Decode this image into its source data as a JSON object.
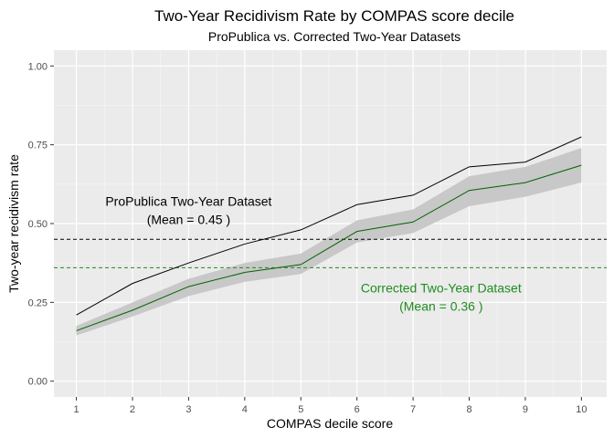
{
  "chart_data": {
    "type": "line",
    "title": "Two-Year Recidivism Rate by COMPAS score decile",
    "subtitle": "ProPublica vs. Corrected Two-Year Datasets",
    "xlabel": "COMPAS decile score",
    "ylabel": "Two-year recidivism rate",
    "x": [
      1,
      2,
      3,
      4,
      5,
      6,
      7,
      8,
      9,
      10
    ],
    "x_ticks": [
      "1",
      "2",
      "3",
      "4",
      "5",
      "6",
      "7",
      "8",
      "9",
      "10"
    ],
    "y_ticks": [
      "0.00",
      "0.25",
      "0.50",
      "0.75",
      "1.00"
    ],
    "y_tick_values": [
      0,
      0.25,
      0.5,
      0.75,
      1.0
    ],
    "xlim": [
      0.6,
      10.45
    ],
    "ylim": [
      -0.05,
      1.05
    ],
    "grid": true,
    "series": [
      {
        "values": [
          0.21,
          0.31,
          0.375,
          0.435,
          0.48,
          0.56,
          0.59,
          0.68,
          0.695,
          0.775
        ],
        "color": "#000000"
      },
      {
        "values": [
          0.16,
          0.225,
          0.3,
          0.345,
          0.37,
          0.475,
          0.505,
          0.605,
          0.63,
          0.685
        ],
        "lower": [
          0.145,
          0.205,
          0.27,
          0.315,
          0.34,
          0.44,
          0.47,
          0.555,
          0.585,
          0.63
        ],
        "upper": [
          0.175,
          0.25,
          0.325,
          0.375,
          0.405,
          0.51,
          0.545,
          0.65,
          0.68,
          0.74
        ],
        "color": "#006400",
        "band_color": "#c8c8c8"
      }
    ],
    "hlines": [
      {
        "y": 0.45,
        "color": "#000000",
        "style": "dashed"
      },
      {
        "y": 0.36,
        "color": "#228b22",
        "style": "dashed"
      }
    ],
    "annotations": [
      {
        "lines": [
          "ProPublica Two-Year Dataset",
          "(Mean = 0.45 )"
        ],
        "x": 3.0,
        "y": 0.53,
        "color": "#000000"
      },
      {
        "lines": [
          "Corrected Two-Year Dataset",
          "(Mean = 0.36 )"
        ],
        "x": 7.5,
        "y": 0.255,
        "color": "#228b22"
      }
    ]
  }
}
